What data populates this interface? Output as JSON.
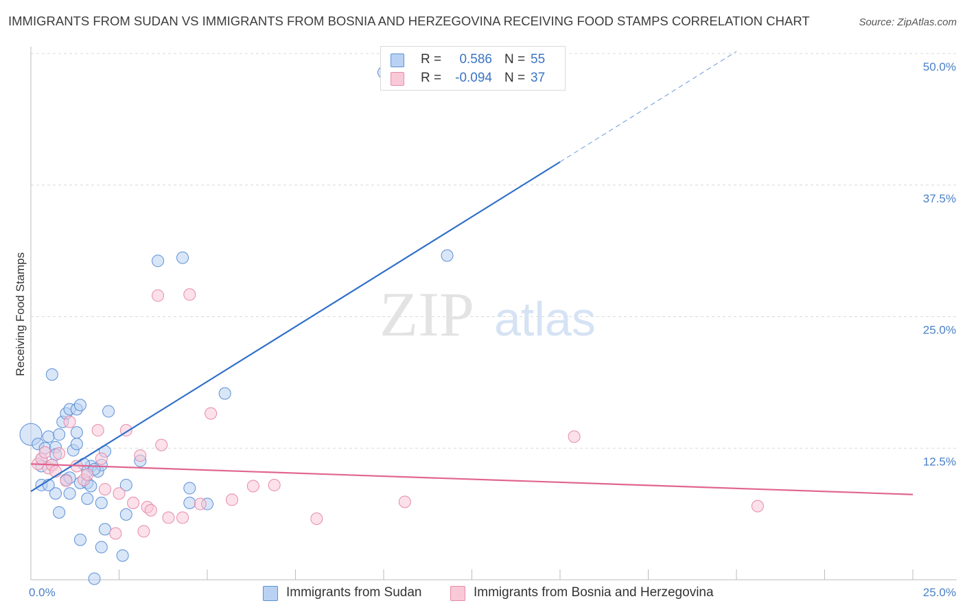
{
  "header": {
    "title": "IMMIGRANTS FROM SUDAN VS IMMIGRANTS FROM BOSNIA AND HERZEGOVINA RECEIVING FOOD STAMPS CORRELATION CHART",
    "source": "Source: ZipAtlas.com"
  },
  "watermark": {
    "zip": "ZIP",
    "atlas": "atlas"
  },
  "stats": {
    "sudan": {
      "r_label": "R =",
      "r_value": "0.586",
      "n_label": "N =",
      "n_value": "55"
    },
    "bosnia": {
      "r_label": "R =",
      "r_value": "-0.094",
      "n_label": "N =",
      "n_value": "37"
    }
  },
  "legend": {
    "sudan": "Immigrants from Sudan",
    "bosnia": "Immigrants from Bosnia and Herzegovina"
  },
  "colors": {
    "sudan_fill": "#b9d2f3",
    "sudan_stroke": "#5b8fd6",
    "sudan_line": "#2f6fc9",
    "bosnia_fill": "#f9c9d8",
    "bosnia_stroke": "#e58aa8",
    "bosnia_line": "#e0658f",
    "tick_text": "#4a7fc7",
    "grid": "#d9d9d9"
  },
  "chart_data": {
    "type": "scatter",
    "title": "IMMIGRANTS FROM SUDAN VS IMMIGRANTS FROM BOSNIA AND HERZEGOVINA RECEIVING FOOD STAMPS CORRELATION CHART",
    "xlabel": "",
    "ylabel": "Receiving Food Stamps",
    "xlim": [
      0,
      25
    ],
    "ylim": [
      0,
      50
    ],
    "x_tick_labels": [
      "0.0%",
      "25.0%"
    ],
    "y_ticks": [
      12.5,
      25,
      37.5,
      50
    ],
    "y_tick_labels": [
      "12.5%",
      "25.0%",
      "37.5%",
      "50.0%"
    ],
    "grid": true,
    "legend_position": "bottom",
    "series": [
      {
        "name": "Immigrants from Sudan",
        "r": 0.586,
        "n": 55,
        "trend": {
          "x0": 0,
          "y0": 8.4,
          "x1": 15,
          "y1": 39.7,
          "dash_to_x": 20,
          "dash_to_y": 50.2
        },
        "points": [
          [
            0,
            13.8,
            3
          ],
          [
            0.2,
            12.9,
            1
          ],
          [
            0.3,
            11.5,
            1
          ],
          [
            0.4,
            12.5,
            1
          ],
          [
            0.5,
            13.6,
            1
          ],
          [
            0.6,
            19.5,
            1
          ],
          [
            0.7,
            12.6,
            1
          ],
          [
            0.7,
            11.9,
            1
          ],
          [
            0.8,
            13.8,
            1
          ],
          [
            0.9,
            15.0,
            1
          ],
          [
            1.0,
            15.8,
            1
          ],
          [
            1.1,
            16.2,
            1
          ],
          [
            1.2,
            12.3,
            1
          ],
          [
            1.3,
            16.2,
            1
          ],
          [
            1.4,
            16.6,
            1
          ],
          [
            1.3,
            14.0,
            1
          ],
          [
            1.3,
            12.9,
            1
          ],
          [
            1.0,
            9.5,
            1
          ],
          [
            1.1,
            9.7,
            1
          ],
          [
            0.7,
            8.2,
            1
          ],
          [
            0.3,
            9.0,
            1
          ],
          [
            0.5,
            9.0,
            1
          ],
          [
            1.1,
            8.2,
            1
          ],
          [
            0.8,
            6.4,
            1
          ],
          [
            1.6,
            10.3,
            1
          ],
          [
            1.7,
            10.8,
            1
          ],
          [
            1.9,
            10.3,
            1
          ],
          [
            2.0,
            10.9,
            1
          ],
          [
            1.8,
            10.5,
            1
          ],
          [
            2.1,
            12.2,
            1
          ],
          [
            2.2,
            16.0,
            1
          ],
          [
            1.4,
            9.2,
            1
          ],
          [
            1.6,
            9.2,
            1
          ],
          [
            1.7,
            8.9,
            1
          ],
          [
            1.6,
            7.7,
            1
          ],
          [
            2.0,
            7.3,
            1
          ],
          [
            2.1,
            4.8,
            1
          ],
          [
            1.4,
            3.8,
            1
          ],
          [
            2.0,
            3.1,
            1
          ],
          [
            2.6,
            2.3,
            1
          ],
          [
            1.8,
            0.1,
            1
          ],
          [
            2.7,
            9.0,
            1
          ],
          [
            3.1,
            11.3,
            1
          ],
          [
            2.7,
            6.2,
            1
          ],
          [
            3.6,
            30.3,
            1
          ],
          [
            4.3,
            30.6,
            1
          ],
          [
            4.5,
            8.7,
            1
          ],
          [
            4.5,
            7.3,
            1
          ],
          [
            5.0,
            7.2,
            1
          ],
          [
            5.5,
            17.7,
            1
          ],
          [
            11.8,
            30.8,
            1
          ],
          [
            10.0,
            48.2,
            1
          ],
          [
            0.3,
            10.8,
            1
          ],
          [
            0.6,
            10.9,
            1
          ],
          [
            1.5,
            11.0,
            1
          ]
        ]
      },
      {
        "name": "Immigrants from Bosnia and Herzegovina",
        "r": -0.094,
        "n": 37,
        "trend": {
          "x0": 0,
          "y0": 11.0,
          "x1": 25,
          "y1": 8.1
        },
        "points": [
          [
            0.2,
            11.0,
            1
          ],
          [
            0.3,
            11.5,
            1
          ],
          [
            0.4,
            12.1,
            1
          ],
          [
            0.5,
            10.6,
            1
          ],
          [
            0.6,
            10.9,
            1
          ],
          [
            0.7,
            10.3,
            1
          ],
          [
            0.8,
            12.0,
            1
          ],
          [
            1.0,
            9.4,
            1
          ],
          [
            1.1,
            15.0,
            1
          ],
          [
            1.3,
            10.8,
            1
          ],
          [
            1.5,
            9.5,
            1
          ],
          [
            1.6,
            10.0,
            1
          ],
          [
            1.9,
            14.2,
            1
          ],
          [
            2.0,
            11.5,
            1
          ],
          [
            2.1,
            8.6,
            1
          ],
          [
            2.4,
            4.4,
            1
          ],
          [
            2.5,
            8.2,
            1
          ],
          [
            2.7,
            14.2,
            1
          ],
          [
            2.9,
            7.3,
            1
          ],
          [
            3.1,
            11.8,
            1
          ],
          [
            3.2,
            4.6,
            1
          ],
          [
            3.3,
            6.9,
            1
          ],
          [
            3.4,
            6.6,
            1
          ],
          [
            3.6,
            27.0,
            1
          ],
          [
            3.7,
            12.8,
            1
          ],
          [
            3.9,
            5.9,
            1
          ],
          [
            4.3,
            5.9,
            1
          ],
          [
            4.5,
            27.1,
            1
          ],
          [
            4.8,
            7.2,
            1
          ],
          [
            5.1,
            15.8,
            1
          ],
          [
            5.7,
            7.6,
            1
          ],
          [
            6.3,
            8.9,
            1
          ],
          [
            6.9,
            9.0,
            1
          ],
          [
            8.1,
            5.8,
            1
          ],
          [
            10.6,
            7.4,
            1
          ],
          [
            15.4,
            13.6,
            1
          ],
          [
            20.6,
            7.0,
            1
          ]
        ]
      }
    ]
  }
}
